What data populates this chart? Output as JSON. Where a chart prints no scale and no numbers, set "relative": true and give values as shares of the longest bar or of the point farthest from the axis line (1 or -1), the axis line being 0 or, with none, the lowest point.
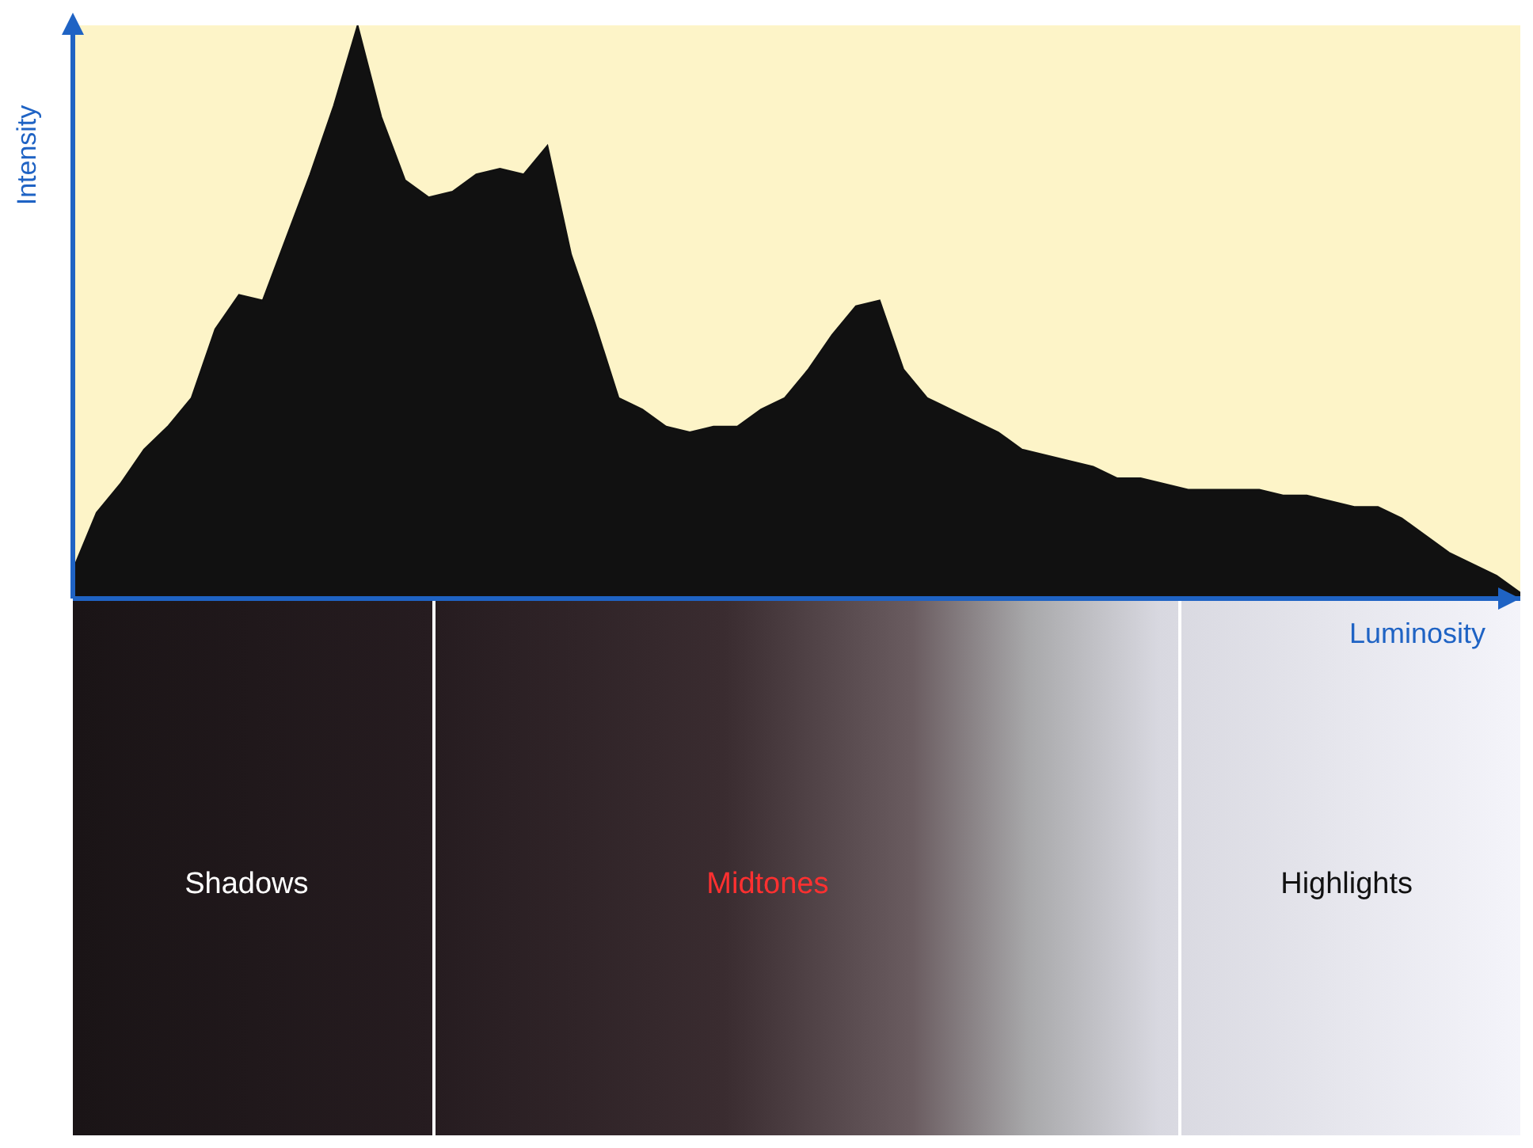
{
  "chart_data": {
    "type": "area",
    "relative": true,
    "xlabel": "Luminosity",
    "ylabel": "Intensity",
    "grid": false,
    "categories": [
      null,
      null,
      null,
      null,
      null,
      null,
      null,
      null,
      null,
      null,
      null,
      null,
      null,
      null,
      null,
      null,
      null,
      null,
      null,
      null,
      null,
      null,
      null,
      null,
      null,
      null,
      null,
      null,
      null,
      null,
      null,
      null,
      null,
      null,
      null,
      null,
      null,
      null,
      null,
      null,
      null,
      null,
      null,
      null,
      null,
      null,
      null,
      null,
      null,
      null,
      null,
      null,
      null,
      null,
      null,
      null,
      null,
      null,
      null,
      null,
      null,
      null
    ],
    "color": "#111111",
    "values": [
      0.05,
      0.15,
      0.2,
      0.26,
      0.3,
      0.35,
      0.47,
      0.53,
      0.52,
      0.63,
      0.74,
      0.86,
      1.0,
      0.84,
      0.73,
      0.7,
      0.71,
      0.74,
      0.75,
      0.74,
      0.79,
      0.6,
      0.48,
      0.35,
      0.33,
      0.3,
      0.29,
      0.3,
      0.3,
      0.33,
      0.35,
      0.4,
      0.46,
      0.51,
      0.52,
      0.4,
      0.35,
      0.33,
      0.31,
      0.29,
      0.26,
      0.25,
      0.24,
      0.23,
      0.21,
      0.21,
      0.2,
      0.19,
      0.19,
      0.19,
      0.19,
      0.18,
      0.18,
      0.17,
      0.16,
      0.16,
      0.14,
      0.11,
      0.08,
      0.06,
      0.04,
      0.01
    ],
    "annotations": [
      "Shadows",
      "Midtones",
      "Highlights"
    ]
  }
}
